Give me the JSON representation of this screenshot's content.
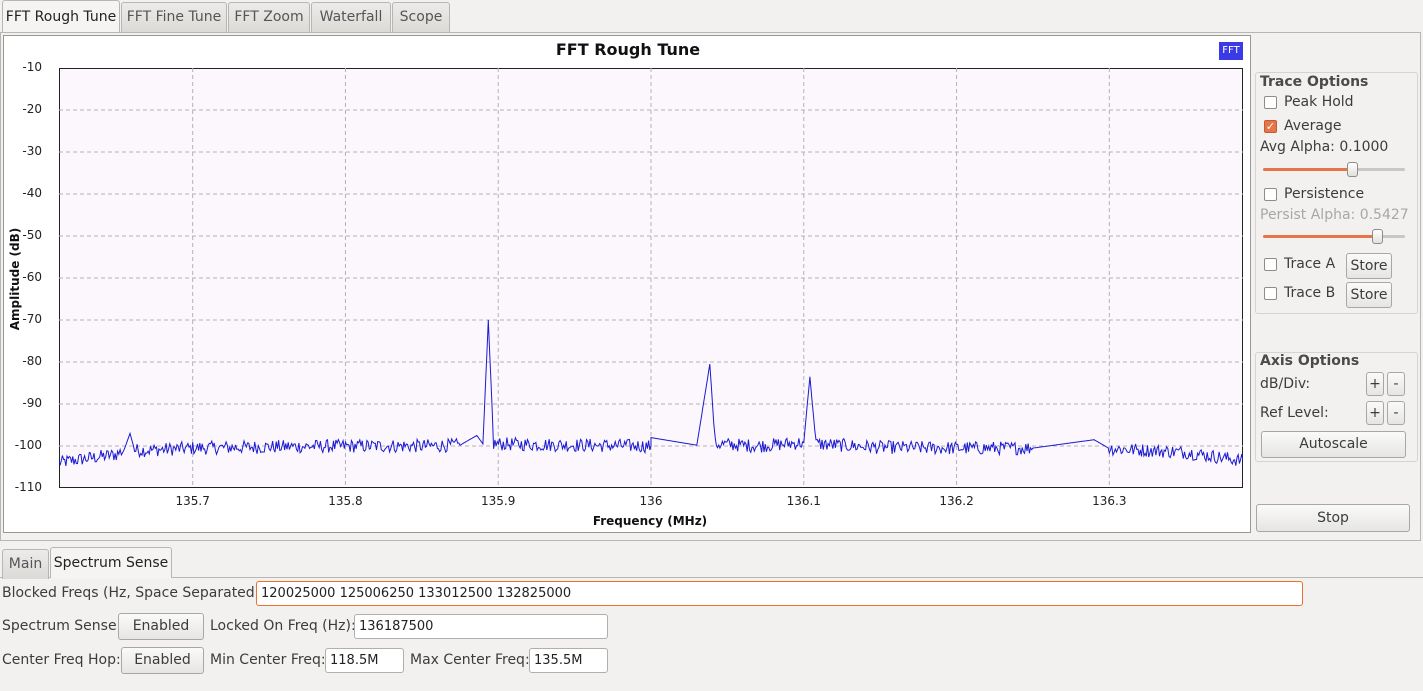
{
  "tabs": {
    "top": [
      "FFT Rough Tune",
      "FFT Fine Tune",
      "FFT Zoom",
      "Waterfall",
      "Scope"
    ],
    "active_top": 0,
    "bottom": [
      "Main",
      "Spectrum Sense"
    ],
    "active_bottom": 1
  },
  "plot": {
    "badge": "FFT",
    "accent_color": "#3a3ae6",
    "trace_color": "#1a1ad0"
  },
  "chart_data": {
    "type": "line",
    "title": "FFT Rough Tune",
    "xlabel": "Frequency (MHz)",
    "ylabel": "Amplitude (dB)",
    "xlim": [
      135.6125,
      136.3875
    ],
    "ylim": [
      -110,
      -10
    ],
    "x_ticks": [
      "135.7",
      "135.8",
      "135.9",
      "136",
      "136.1",
      "136.2",
      "136.3"
    ],
    "y_ticks": [
      "-10",
      "-20",
      "-30",
      "-40",
      "-50",
      "-60",
      "-70",
      "-80",
      "-90",
      "-100",
      "-110"
    ],
    "grid": true,
    "series": [
      {
        "noise_floor_db": -100.5,
        "points": [
          [
            135.6125,
            -104
          ],
          [
            135.62,
            -103.5
          ],
          [
            135.63,
            -103
          ],
          [
            135.64,
            -102.5
          ],
          [
            135.65,
            -102
          ],
          [
            135.655,
            -101
          ],
          [
            135.659,
            -97
          ],
          [
            135.662,
            -101
          ],
          [
            135.67,
            -101
          ],
          [
            135.7,
            -100.5
          ],
          [
            135.75,
            -100.2
          ],
          [
            135.8,
            -100
          ],
          [
            135.85,
            -100
          ],
          [
            135.875,
            -99.8
          ],
          [
            135.886,
            -97.5
          ],
          [
            135.89,
            -99.5
          ],
          [
            135.8935,
            -70
          ],
          [
            135.897,
            -99.5
          ],
          [
            135.95,
            -99.8
          ],
          [
            136.0,
            -100
          ],
          [
            136.0,
            -98
          ],
          [
            136.03,
            -99.8
          ],
          [
            136.0385,
            -80.5
          ],
          [
            136.042,
            -99.5
          ],
          [
            136.07,
            -100
          ],
          [
            136.1,
            -99.2
          ],
          [
            136.104,
            -83.5
          ],
          [
            136.108,
            -99.5
          ],
          [
            136.15,
            -100.3
          ],
          [
            136.2,
            -100.5
          ],
          [
            136.25,
            -100.5
          ],
          [
            136.29,
            -98.5
          ],
          [
            136.3,
            -100.6
          ],
          [
            136.35,
            -101.5
          ],
          [
            136.3875,
            -103.5
          ]
        ]
      }
    ]
  },
  "trace_options": {
    "title": "Trace Options",
    "peak_hold": {
      "label": "Peak Hold",
      "checked": false
    },
    "average": {
      "label": "Average",
      "checked": true
    },
    "avg_alpha_label": "Avg Alpha: 0.1000",
    "avg_alpha_fraction": 0.64,
    "persistence": {
      "label": "Persistence",
      "checked": false
    },
    "persist_alpha_label": "Persist Alpha: 0.5427",
    "persist_alpha_fraction": 0.83,
    "trace_a": {
      "label": "Trace A",
      "checked": false,
      "button": "Store"
    },
    "trace_b": {
      "label": "Trace B",
      "checked": false,
      "button": "Store"
    }
  },
  "axis_options": {
    "title": "Axis Options",
    "db_div_label": "dB/Div:",
    "ref_level_label": "Ref Level:",
    "plus": "+",
    "minus": "-",
    "autoscale": "Autoscale"
  },
  "stop_button": "Stop",
  "spectrum_sense": {
    "blocked_label": "Blocked Freqs (Hz, Space Separated):",
    "blocked_value": "120025000 125006250 133012500 132825000",
    "sense_label": "Spectrum Sense:",
    "sense_button": "Enabled",
    "locked_label": "Locked On Freq (Hz):",
    "locked_value": "136187500",
    "hop_label": "Center Freq Hop:",
    "hop_button": "Enabled",
    "min_label": "Min Center Freq:",
    "min_value": "118.5M",
    "max_label": "Max Center Freq:",
    "max_value": "135.5M"
  }
}
